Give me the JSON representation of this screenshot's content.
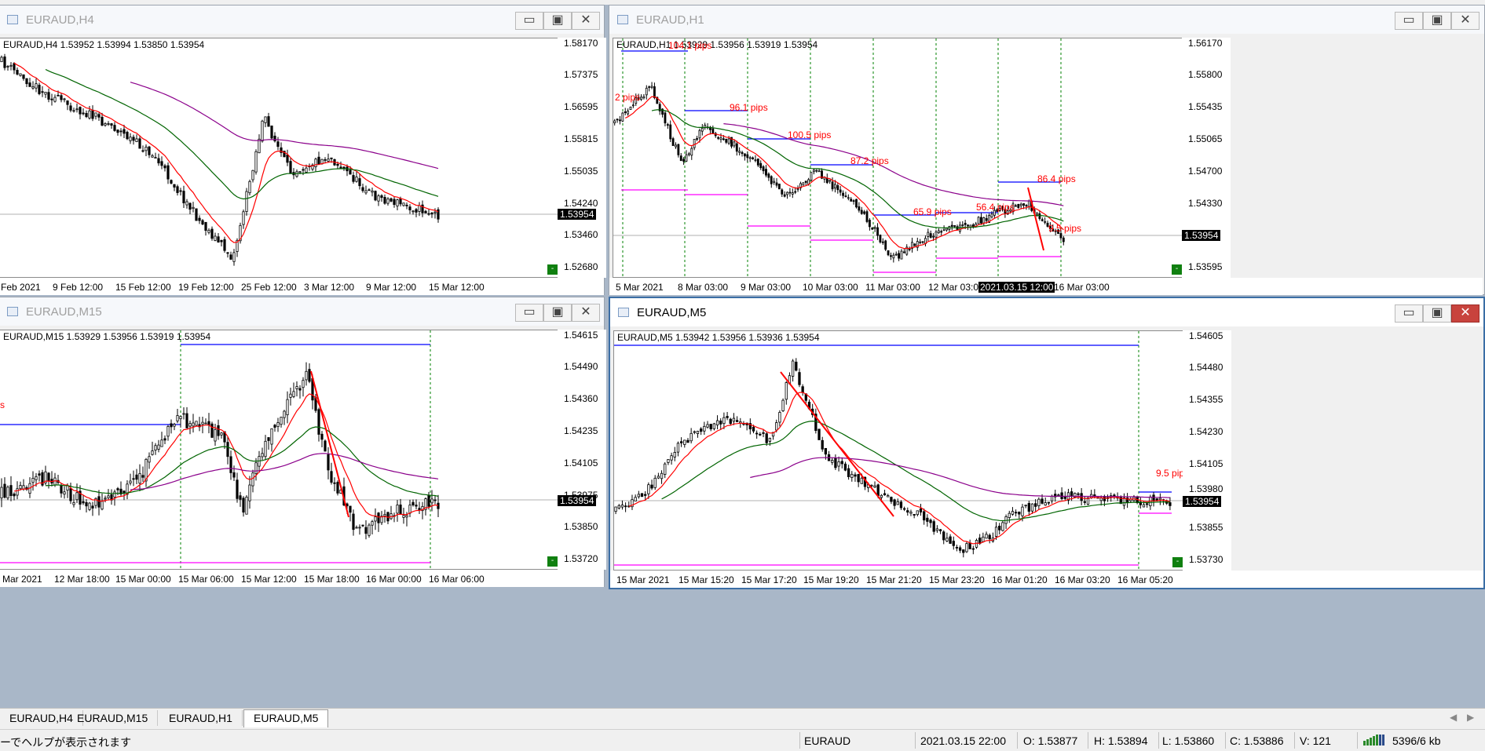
{
  "windows": {
    "h4": {
      "title": "EURAUD,H4",
      "info": "EURAUD,H4  1.53952 1.53994 1.53850 1.53954",
      "price_labels": [
        "1.58170",
        "1.57375",
        "1.56595",
        "1.55815",
        "1.55035",
        "1.54240",
        "1.53460",
        "1.52680"
      ],
      "current_price": "1.53954",
      "time_labels": [
        "Feb 2021",
        "9 Feb 12:00",
        "15 Feb 12:00",
        "19 Feb 12:00",
        "25 Feb 12:00",
        "3 Mar 12:00",
        "9 Mar 12:00",
        "15 Mar 12:00"
      ],
      "minimize_glyph": "▭",
      "maximize_glyph": "▣",
      "close_glyph": "✕"
    },
    "h1": {
      "title": "EURAUD,H1",
      "info": "EURAUD,H1  1.53929 1.53956 1.53919 1.53954",
      "price_labels": [
        "1.56170",
        "1.55800",
        "1.55435",
        "1.55065",
        "1.54700",
        "1.54330",
        "1.53954",
        "1.53595"
      ],
      "current_price": "1.53954",
      "time_labels": [
        "5 Mar 2021",
        "8 Mar 03:00",
        "9 Mar 03:00",
        "10 Mar 03:00",
        "11 Mar 03:00",
        "12 Mar 03:00",
        "2021.03.15 12:00",
        "16 Mar 03:00"
      ],
      "pips": [
        "104.1 pips",
        "2 pips",
        "96.1 pips",
        "100.5 pips",
        "87.2 pips",
        "65.9 pips",
        "56.4 pips",
        "86.4 pips",
        "9.5 pips"
      ],
      "minimize_glyph": "▭",
      "maximize_glyph": "▣",
      "close_glyph": "✕"
    },
    "m15": {
      "title": "EURAUD,M15",
      "info": "EURAUD,M15  1.53929 1.53956 1.53919 1.53954",
      "price_labels": [
        "1.54615",
        "1.54490",
        "1.54360",
        "1.54235",
        "1.54105",
        "1.53975",
        "1.53850",
        "1.53720"
      ],
      "current_price": "1.53954",
      "time_labels": [
        "Mar 2021",
        "12 Mar 18:00",
        "15 Mar 00:00",
        "15 Mar 06:00",
        "15 Mar 12:00",
        "15 Mar 18:00",
        "16 Mar 00:00",
        "16 Mar 06:00"
      ],
      "pips": [
        "s"
      ],
      "minimize_glyph": "▭",
      "maximize_glyph": "▣",
      "close_glyph": "✕"
    },
    "m5": {
      "title": "EURAUD,M5",
      "info": "EURAUD,M5  1.53942 1.53956 1.53936 1.53954",
      "price_labels": [
        "1.54605",
        "1.54480",
        "1.54355",
        "1.54230",
        "1.54105",
        "1.53980",
        "1.53855",
        "1.53730"
      ],
      "current_price": "1.53954",
      "time_labels": [
        "15 Mar 2021",
        "15 Mar 15:20",
        "15 Mar 17:20",
        "15 Mar 19:20",
        "15 Mar 21:20",
        "15 Mar 23:20",
        "16 Mar 01:20",
        "16 Mar 03:20",
        "16 Mar 05:20"
      ],
      "pips": [
        "9.5 pip"
      ],
      "minimize_glyph": "▭",
      "maximize_glyph": "▣",
      "close_glyph": "✕"
    }
  },
  "tabs": [
    "EURAUD,H4",
    "EURAUD,M15",
    "EURAUD,H1",
    "EURAUD,M5"
  ],
  "active_tab": "EURAUD,M5",
  "status": {
    "help": "ーでヘルプが表示されます",
    "symbol": "EURAUD",
    "datetime": "2021.03.15 22:00",
    "open": "O: 1.53877",
    "high": "H: 1.53894",
    "low": "L: 1.53860",
    "close": "C: 1.53886",
    "volume": "V: 121",
    "traffic": "5396/6 kb"
  },
  "colors": {
    "background": "#a9b7c8",
    "ma_fast": "#ff0000",
    "ma_mid": "#006400",
    "ma_slow": "#8b008b",
    "high_line": "#0000ff",
    "low_line": "#ff00ff",
    "period_sep": "#008000"
  }
}
